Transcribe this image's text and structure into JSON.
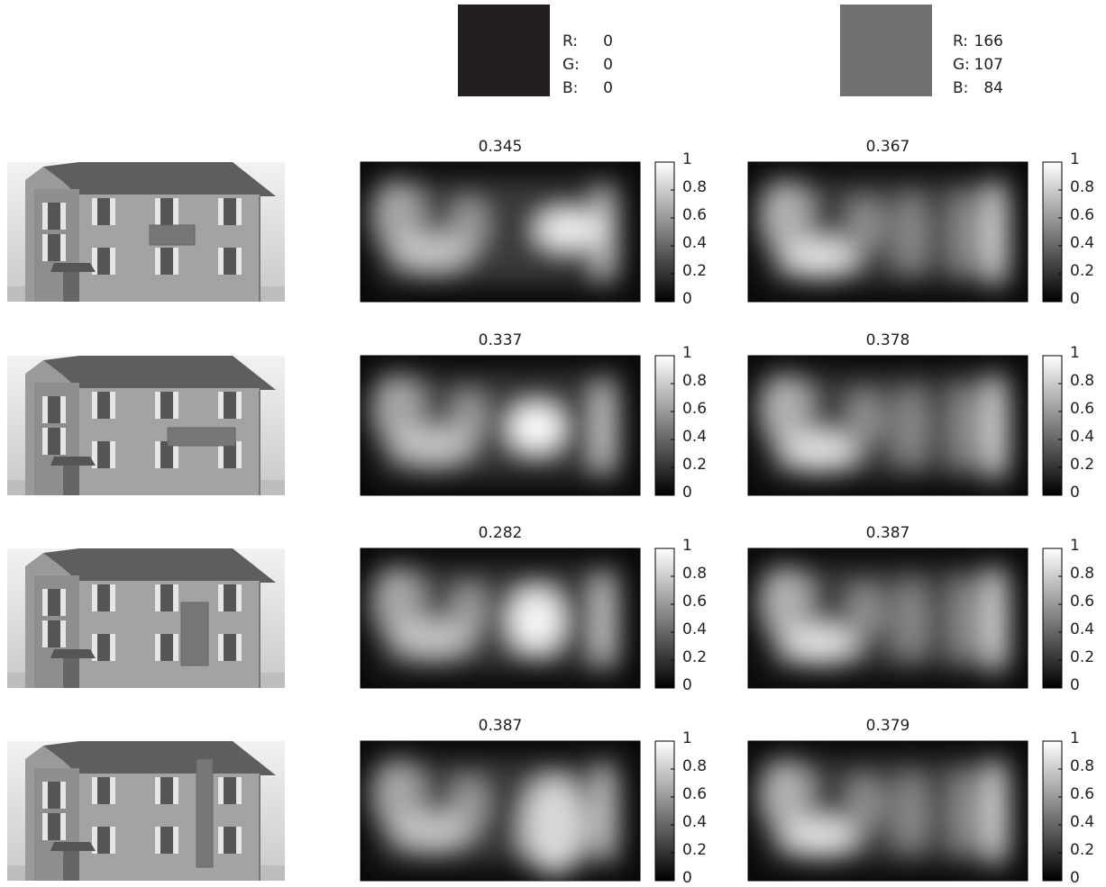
{
  "swatches": [
    {
      "color": "#231f20",
      "channels": [
        {
          "label": "R:",
          "value": 0
        },
        {
          "label": "G:",
          "value": 0
        },
        {
          "label": "B:",
          "value": 0
        }
      ]
    },
    {
      "color": "#707072",
      "channels": [
        {
          "label": "R:",
          "value": 166
        },
        {
          "label": "G:",
          "value": 107
        },
        {
          "label": "B:",
          "value": 84
        }
      ]
    }
  ],
  "colorbar_ticks": [
    0,
    0.2,
    0.4,
    0.6,
    0.8,
    1
  ],
  "rows": [
    {
      "scores": [
        0.345,
        0.367
      ]
    },
    {
      "scores": [
        0.337,
        0.378
      ]
    },
    {
      "scores": [
        0.282,
        0.387
      ]
    },
    {
      "scores": [
        0.387,
        0.379
      ]
    }
  ]
}
